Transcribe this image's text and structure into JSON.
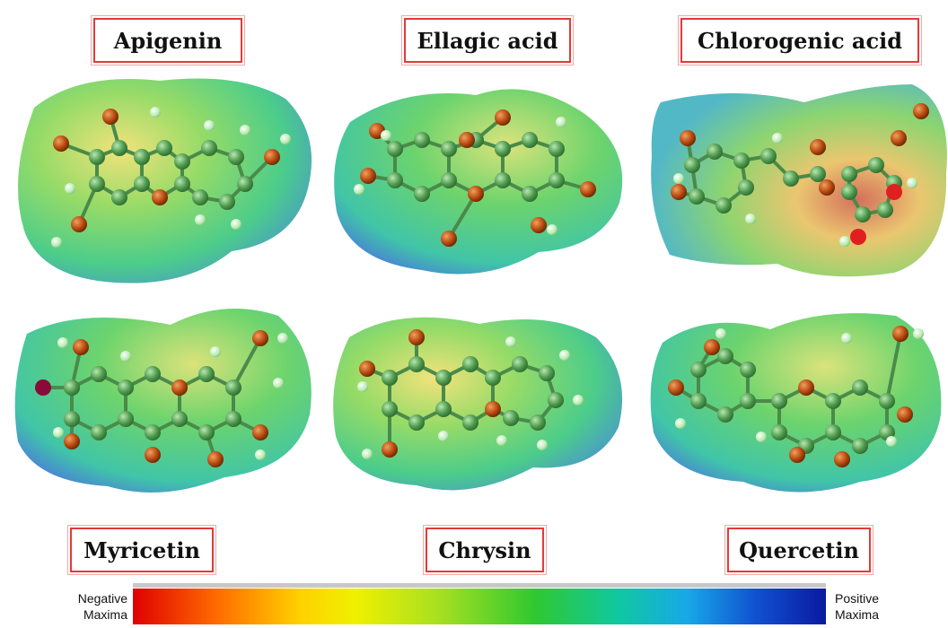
{
  "molecules": [
    {
      "name": "Apigenin"
    },
    {
      "name": "Ellagic acid"
    },
    {
      "name": "Chlorogenic acid"
    },
    {
      "name": "Myricetin"
    },
    {
      "name": "Chrysin"
    },
    {
      "name": "Quercetin"
    }
  ],
  "legend": {
    "negative_line1": "Negative",
    "negative_line2": "Maxima",
    "positive_line1": "Positive",
    "positive_line2": "Maxima",
    "gradient_colors": [
      "#e00000",
      "#ff6a00",
      "#ffd000",
      "#f0f000",
      "#a8e020",
      "#30c830",
      "#10c8a0",
      "#18a8e8",
      "#1050d0",
      "#0a1aa0"
    ]
  },
  "colors": {
    "box_border": "#e23a3a",
    "surface_green": "#4cc870",
    "surface_yellow": "#f0e070",
    "surface_blue": "#3a6fd8",
    "atom_carbon": "#4f9a4f",
    "atom_oxygen": "#b84a10",
    "atom_hydrogen": "#c8f0c0"
  }
}
